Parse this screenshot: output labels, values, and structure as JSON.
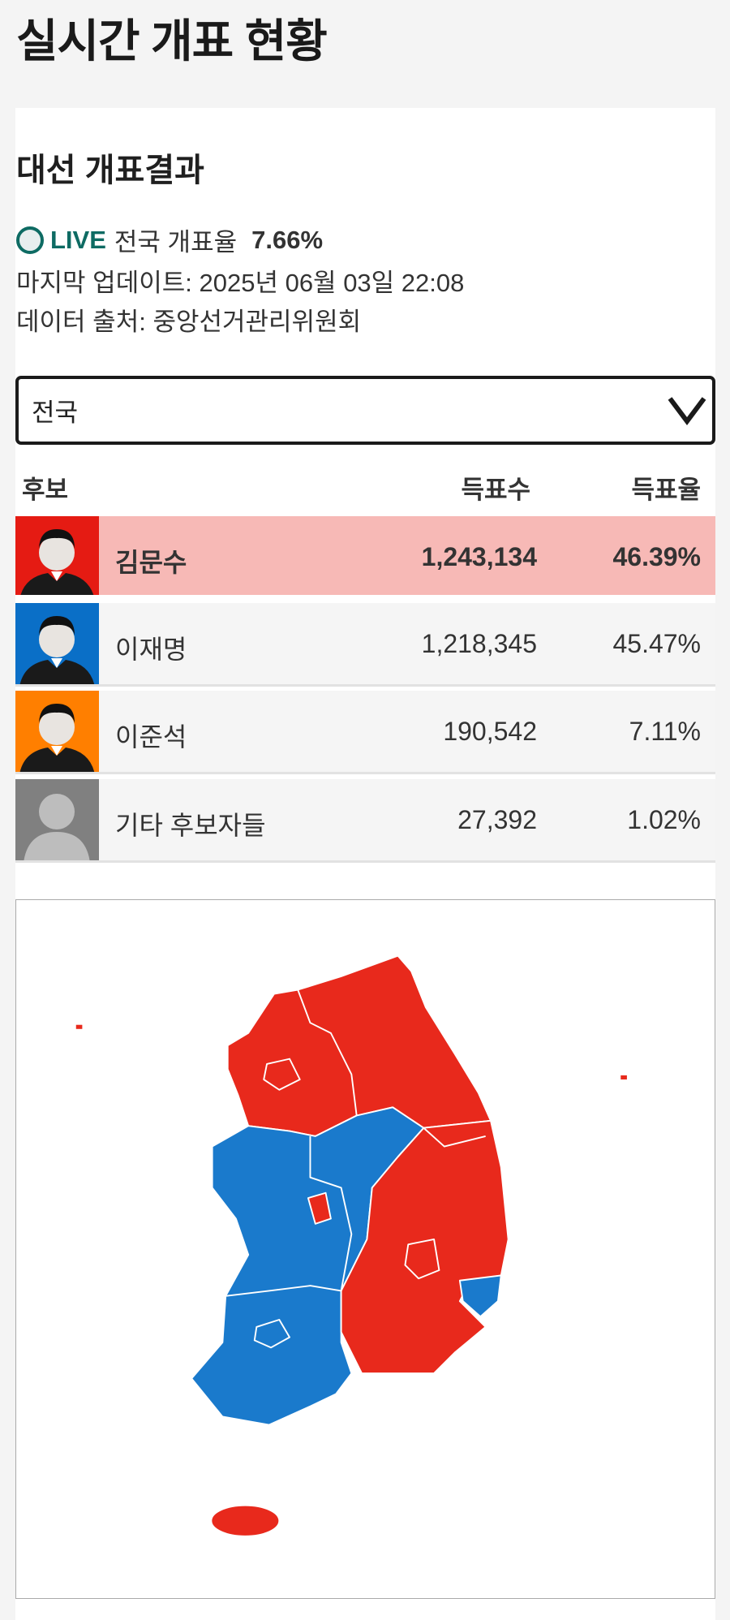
{
  "page_title": "실시간 개표 현황",
  "section_title": "대선 개표결과",
  "live": {
    "badge": "LIVE",
    "label": "전국 개표율",
    "rate": "7.66%"
  },
  "last_update": "마지막 업데이트: 2025년 06월 03일 22:08",
  "source": "데이터 출처: 중앙선거관리위원회",
  "region_select": {
    "value": "전국"
  },
  "table": {
    "headers": [
      "후보",
      "득표수",
      "득표율"
    ],
    "rows": [
      {
        "name": "김문수",
        "votes": "1,243,134",
        "pct": "46.39%",
        "color": "#e51b13",
        "leading": true
      },
      {
        "name": "이재명",
        "votes": "1,218,345",
        "pct": "45.47%",
        "color": "#0a6fc7",
        "leading": false
      },
      {
        "name": "이준석",
        "votes": "190,542",
        "pct": "7.11%",
        "color": "#ff7f00",
        "leading": false
      },
      {
        "name": "기타 후보자들",
        "votes": "27,392",
        "pct": "1.02%",
        "color": "#808080",
        "leading": false
      }
    ]
  },
  "map": {
    "red": "#e8291c",
    "blue": "#1a7acc"
  }
}
